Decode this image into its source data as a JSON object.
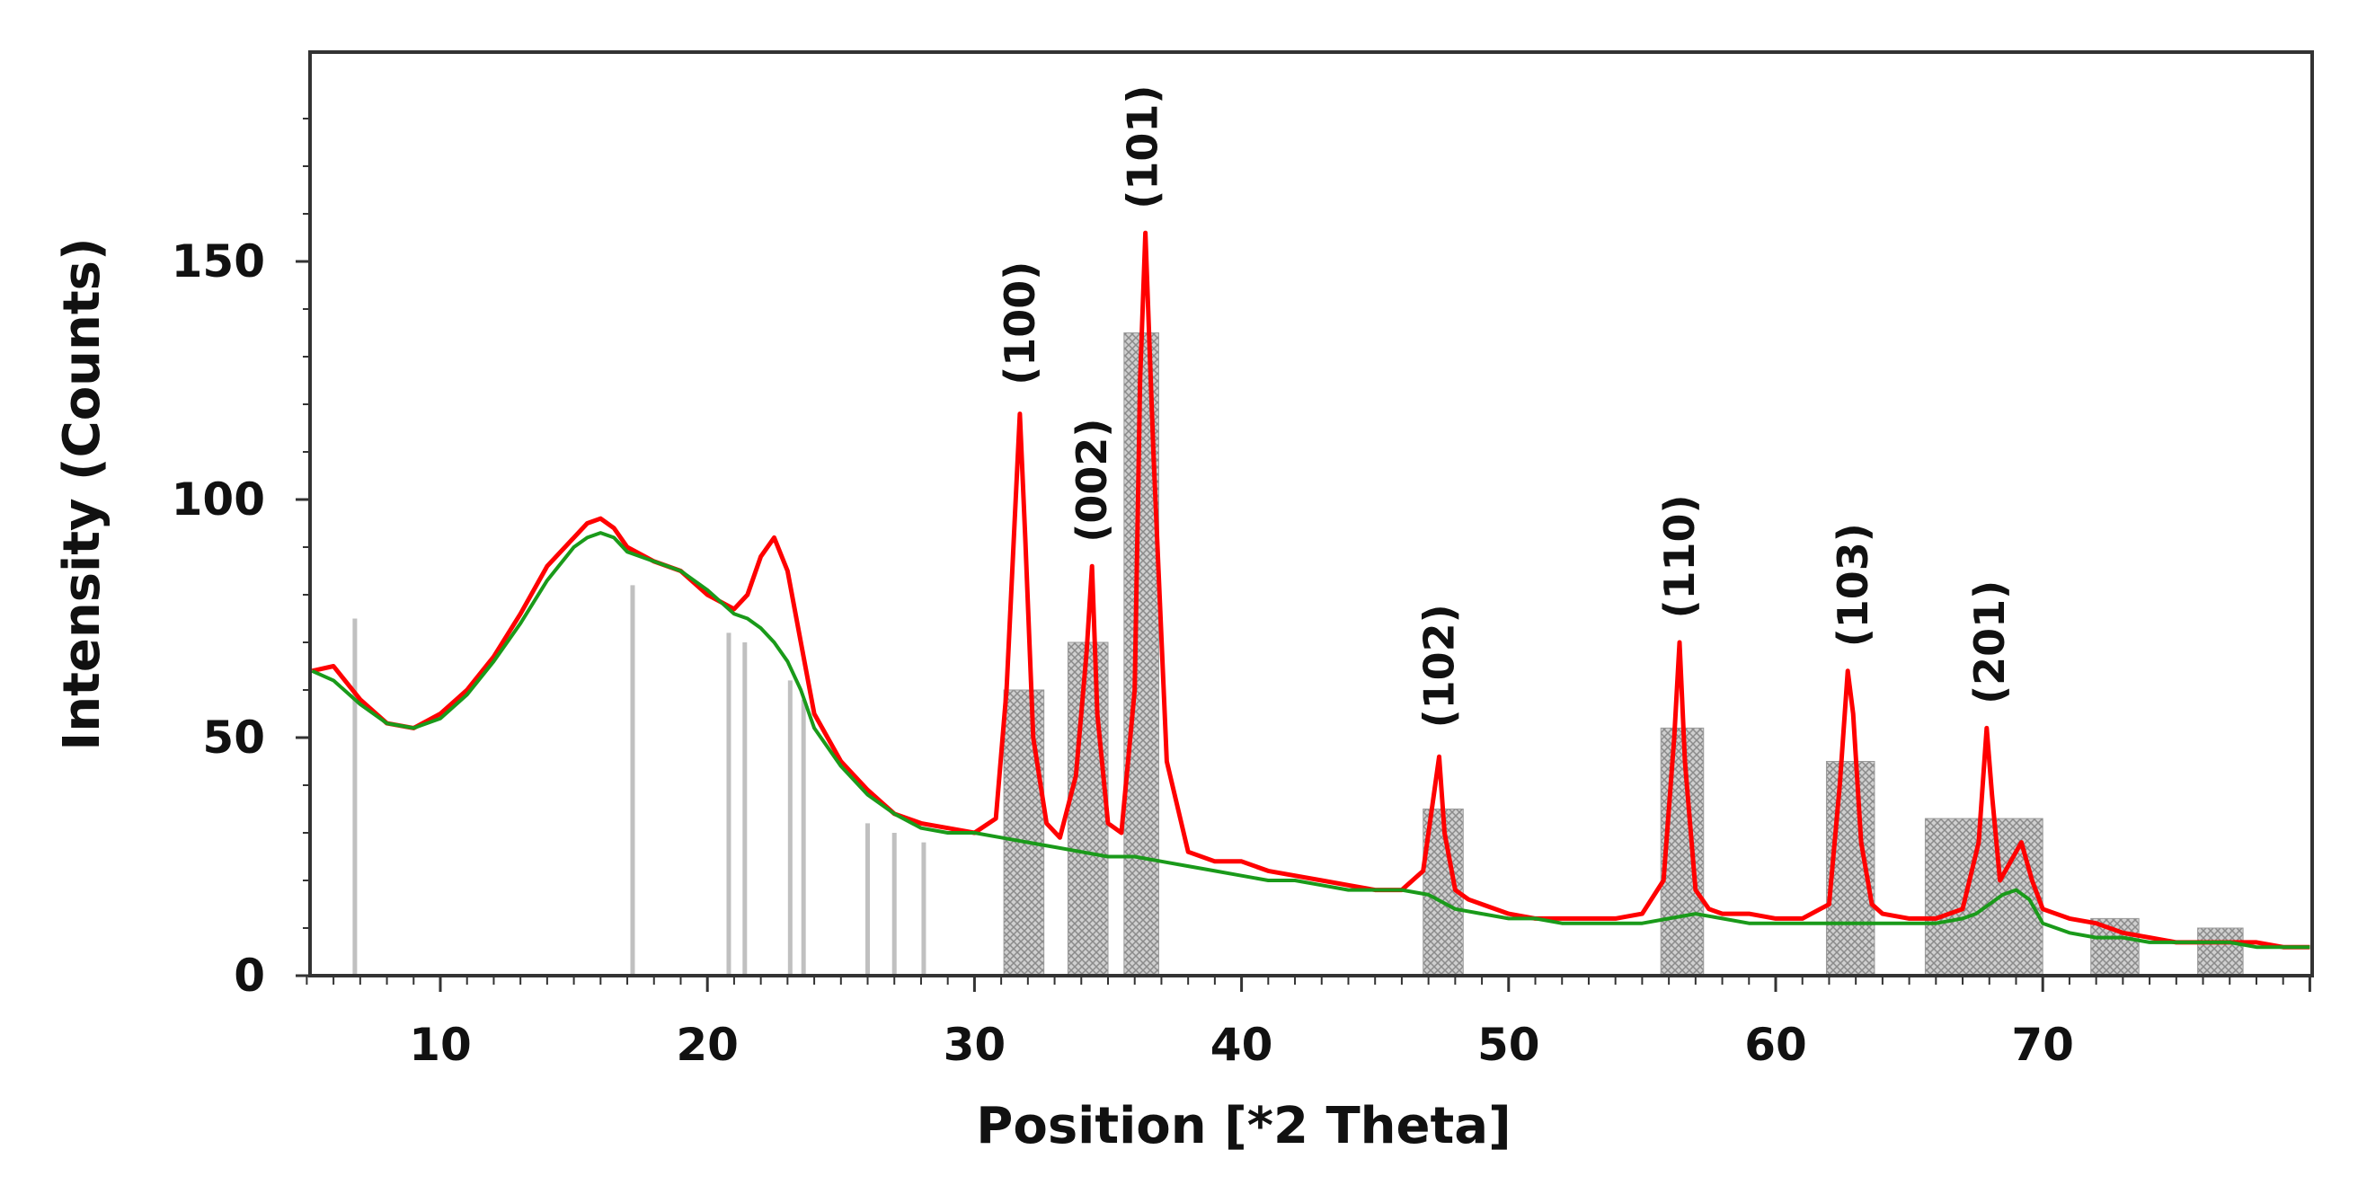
{
  "chart_data": {
    "type": "line",
    "xlabel": "Position [*2 Theta]",
    "ylabel": "Intensity (Counts)",
    "xlim": [
      5,
      80
    ],
    "ylim": [
      0,
      190
    ],
    "x_ticks": [
      10,
      20,
      30,
      40,
      50,
      60,
      70
    ],
    "y_ticks": [
      0,
      50,
      100,
      150
    ],
    "grid": false,
    "legend": "none",
    "colors": {
      "measured": "#ff0000",
      "background_fit": "#1a9a1a",
      "reference_bars": "#c0c0c0",
      "reference_fill": "#bdbdbd",
      "axes": "#333333"
    },
    "series": [
      {
        "x": [
          5.2,
          6,
          7,
          8,
          9,
          10,
          11,
          12,
          13,
          14,
          15,
          15.5,
          16,
          16.5,
          17,
          18,
          19,
          20,
          21,
          21.5,
          22,
          22.5,
          23,
          23.5,
          24,
          25,
          26,
          27,
          28,
          29,
          30,
          30.8,
          31.2,
          31.5,
          31.7,
          31.9,
          32.2,
          32.7,
          33.2,
          33.8,
          34.2,
          34.4,
          34.6,
          35,
          35.5,
          36,
          36.2,
          36.4,
          36.7,
          37.2,
          38,
          39,
          40,
          41,
          42,
          43,
          44,
          45,
          46,
          46.8,
          47.2,
          47.4,
          47.6,
          48,
          48.5,
          49,
          50,
          51,
          52,
          53,
          54,
          55,
          55.8,
          56.2,
          56.4,
          56.6,
          57,
          57.5,
          58,
          59,
          60,
          61,
          62,
          62.4,
          62.7,
          62.9,
          63.2,
          63.6,
          64,
          65,
          66,
          67,
          67.6,
          67.9,
          68.1,
          68.4,
          68.8,
          69.2,
          69.6,
          70,
          71,
          72,
          73,
          74,
          75,
          76,
          77,
          78,
          79,
          80
        ],
        "y": [
          64,
          65,
          58,
          53,
          52,
          55,
          60,
          67,
          76,
          86,
          92,
          95,
          96,
          94,
          90,
          87,
          85,
          80,
          77,
          80,
          88,
          92,
          85,
          70,
          55,
          45,
          39,
          34,
          32,
          31,
          30,
          33,
          60,
          95,
          118,
          92,
          50,
          32,
          29,
          42,
          68,
          86,
          55,
          32,
          30,
          60,
          125,
          156,
          110,
          45,
          26,
          24,
          24,
          22,
          21,
          20,
          19,
          18,
          18,
          22,
          38,
          46,
          30,
          18,
          16,
          15,
          13,
          12,
          12,
          12,
          12,
          13,
          20,
          50,
          70,
          45,
          18,
          14,
          13,
          13,
          12,
          12,
          15,
          40,
          64,
          55,
          28,
          15,
          13,
          12,
          12,
          14,
          28,
          52,
          38,
          20,
          24,
          28,
          20,
          14,
          12,
          11,
          9,
          8,
          7,
          7,
          7,
          7,
          6,
          6
        ]
      },
      {
        "x": [
          5.2,
          6,
          7,
          8,
          9,
          10,
          11,
          12,
          13,
          14,
          15,
          15.5,
          16,
          16.5,
          17,
          18,
          19,
          20,
          21,
          21.5,
          22,
          22.5,
          23,
          23.5,
          24,
          25,
          26,
          27,
          28,
          29,
          30,
          31,
          32,
          33,
          34,
          35,
          36,
          37,
          38,
          39,
          40,
          41,
          42,
          43,
          44,
          45,
          46,
          47,
          48,
          49,
          50,
          51,
          52,
          53,
          54,
          55,
          56,
          57,
          58,
          59,
          60,
          61,
          62,
          63,
          64,
          65,
          66,
          67,
          67.5,
          68,
          68.5,
          69,
          69.5,
          70,
          71,
          72,
          73,
          74,
          75,
          76,
          77,
          78,
          79,
          80
        ],
        "y": [
          64,
          62,
          57,
          53,
          52,
          54,
          59,
          66,
          74,
          83,
          90,
          92,
          93,
          92,
          89,
          87,
          85,
          81,
          76,
          75,
          73,
          70,
          66,
          60,
          52,
          44,
          38,
          34,
          31,
          30,
          30,
          29,
          28,
          27,
          26,
          25,
          25,
          24,
          23,
          22,
          21,
          20,
          20,
          19,
          18,
          18,
          18,
          17,
          14,
          13,
          12,
          12,
          11,
          11,
          11,
          11,
          12,
          13,
          12,
          11,
          11,
          11,
          11,
          11,
          11,
          11,
          11,
          12,
          13,
          15,
          17,
          18,
          16,
          11,
          9,
          8,
          8,
          7,
          7,
          7,
          7,
          6,
          6,
          6
        ]
      }
    ],
    "reference_peaks": [
      {
        "x": 6.8,
        "y": 75
      },
      {
        "x": 17.2,
        "y": 82
      },
      {
        "x": 20.8,
        "y": 72
      },
      {
        "x": 21.4,
        "y": 70
      },
      {
        "x": 23.1,
        "y": 62
      },
      {
        "x": 23.6,
        "y": 58
      },
      {
        "x": 26,
        "y": 32
      },
      {
        "x": 27,
        "y": 30
      },
      {
        "x": 28.1,
        "y": 28
      }
    ],
    "reference_regions": [
      {
        "x1": 31.1,
        "x2": 32.6,
        "y": 60
      },
      {
        "x1": 33.5,
        "x2": 35.0,
        "y": 70
      },
      {
        "x1": 35.6,
        "x2": 36.9,
        "y": 135
      },
      {
        "x1": 46.8,
        "x2": 48.3,
        "y": 35
      },
      {
        "x1": 55.7,
        "x2": 57.3,
        "y": 52
      },
      {
        "x1": 61.9,
        "x2": 63.7,
        "y": 45
      },
      {
        "x1": 65.6,
        "x2": 70.0,
        "y": 33
      },
      {
        "x1": 71.8,
        "x2": 73.6,
        "y": 12
      },
      {
        "x1": 75.8,
        "x2": 77.5,
        "y": 10
      }
    ],
    "annotations": [
      {
        "text": "(100)",
        "x": 31.7,
        "y": 124
      },
      {
        "text": "(002)",
        "x": 34.4,
        "y": 91
      },
      {
        "text": "(101)",
        "x": 36.3,
        "y": 161
      },
      {
        "text": "(102)",
        "x": 47.4,
        "y": 52
      },
      {
        "text": "(110)",
        "x": 56.4,
        "y": 75
      },
      {
        "text": "(103)",
        "x": 62.9,
        "y": 69
      },
      {
        "text": "(201)",
        "x": 68.0,
        "y": 57
      }
    ]
  }
}
